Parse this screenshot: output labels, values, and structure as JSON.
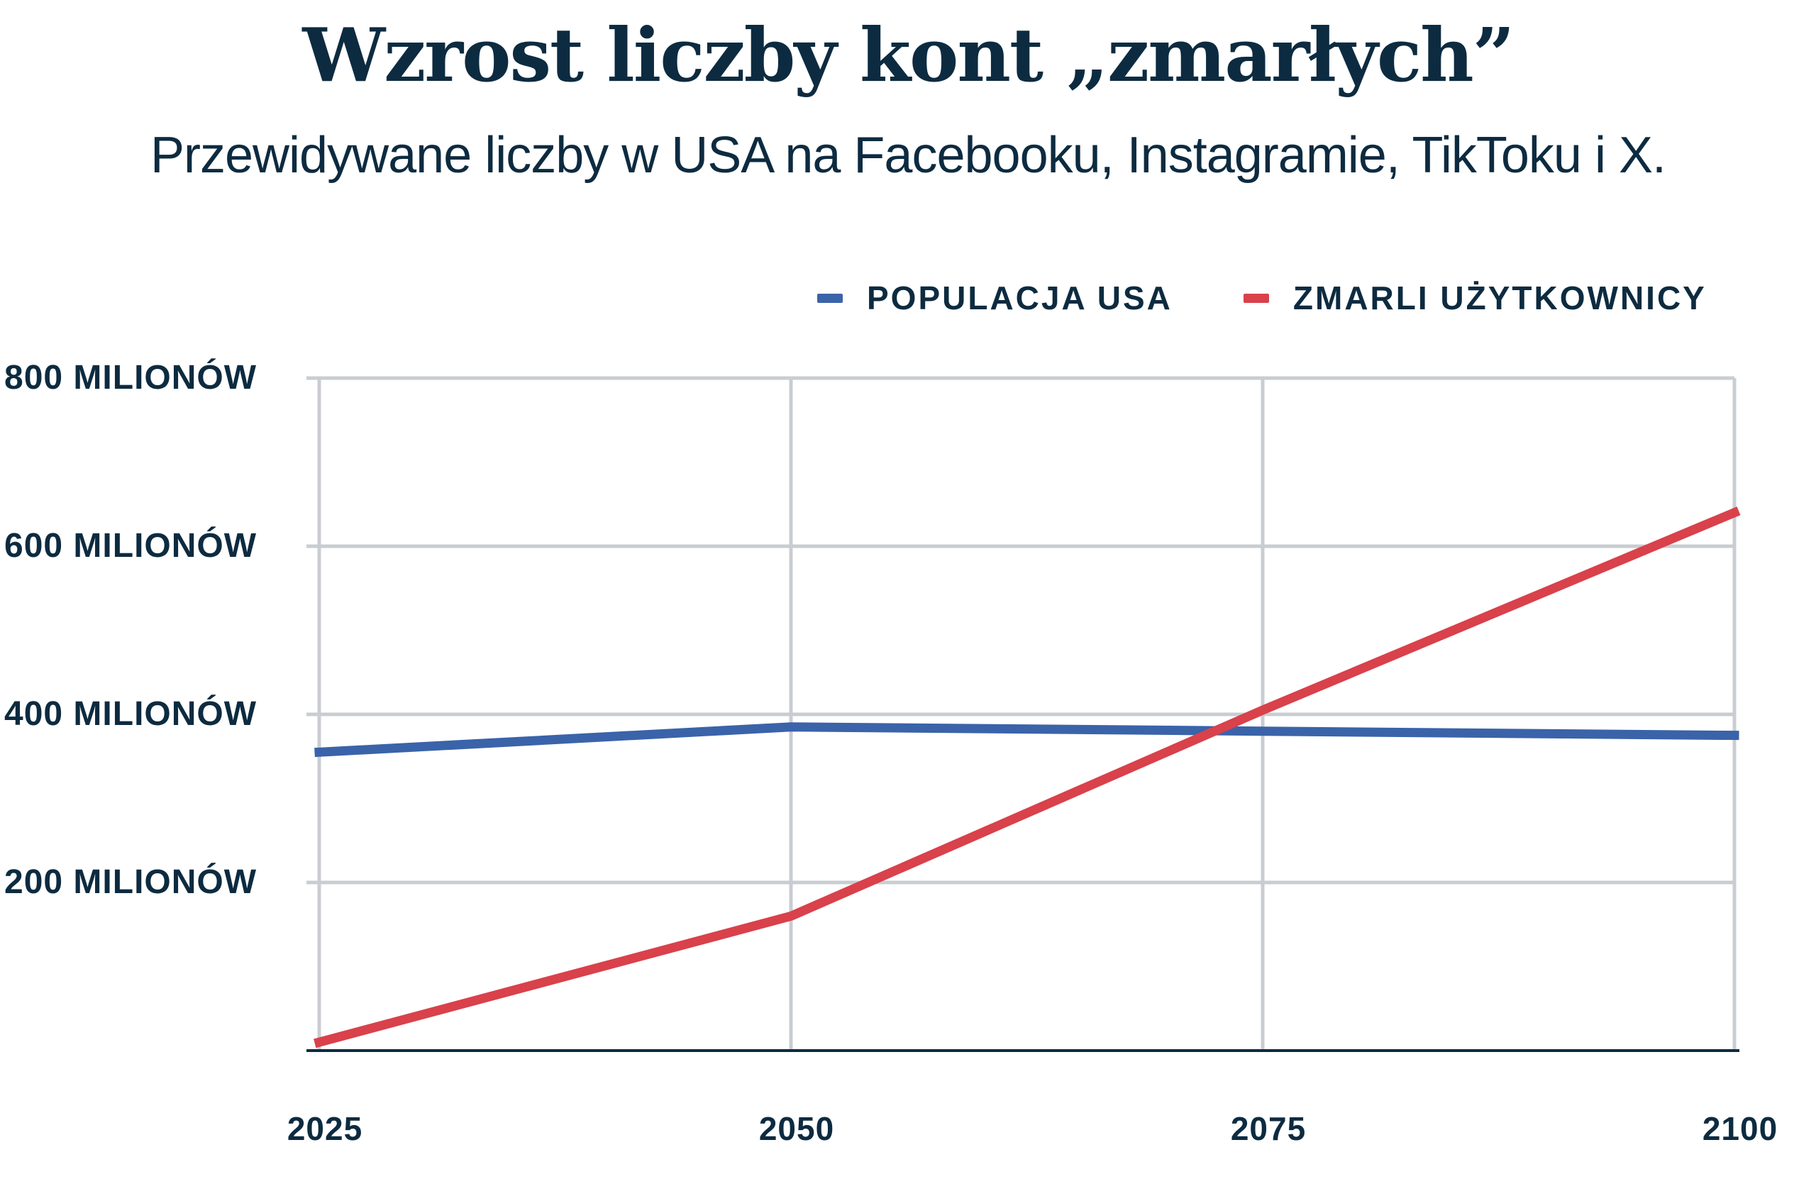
{
  "header": {
    "title": "Wzrost liczby kont „zmarłych”",
    "subtitle": "Przewidywane liczby w USA na Facebooku, Instagramie, TikToku i X."
  },
  "legend": [
    {
      "label": "POPULACJA USA",
      "color": "#3a63a9"
    },
    {
      "label": "ZMARLI UŻYTKOWNICY",
      "color": "#d9414b"
    }
  ],
  "colors": {
    "text_navy": "#0d2b40",
    "gridline": "#c9cdd2",
    "axis": "#0d2b40",
    "background": "#ffffff",
    "series_blue": "#3a63a9",
    "series_red": "#d9414b"
  },
  "chart_data": {
    "type": "line",
    "title": "Wzrost liczby kont „zmarłych”",
    "subtitle": "Przewidywane liczby w USA na Facebooku, Instagramie, TikToku i X.",
    "x": [
      2025,
      2050,
      2075,
      2100
    ],
    "x_tick_labels": [
      "2025",
      "2050",
      "2075",
      "2100"
    ],
    "xlabel": "",
    "ylabel": "",
    "ylim": [
      0,
      800
    ],
    "y_ticks": [
      200,
      400,
      600,
      800
    ],
    "y_tick_labels": [
      "200 MILIONÓW",
      "400 MILIONÓW",
      "600 MILIONÓW",
      "800 MILIONÓW"
    ],
    "grid": true,
    "legend_position": "top-right",
    "series": [
      {
        "name": "POPULACJA USA",
        "color": "#3a63a9",
        "values": [
          355,
          385,
          380,
          375
        ]
      },
      {
        "name": "ZMARLI UŻYTKOWNICY",
        "color": "#d9414b",
        "values": [
          10,
          160,
          405,
          640
        ]
      }
    ]
  }
}
